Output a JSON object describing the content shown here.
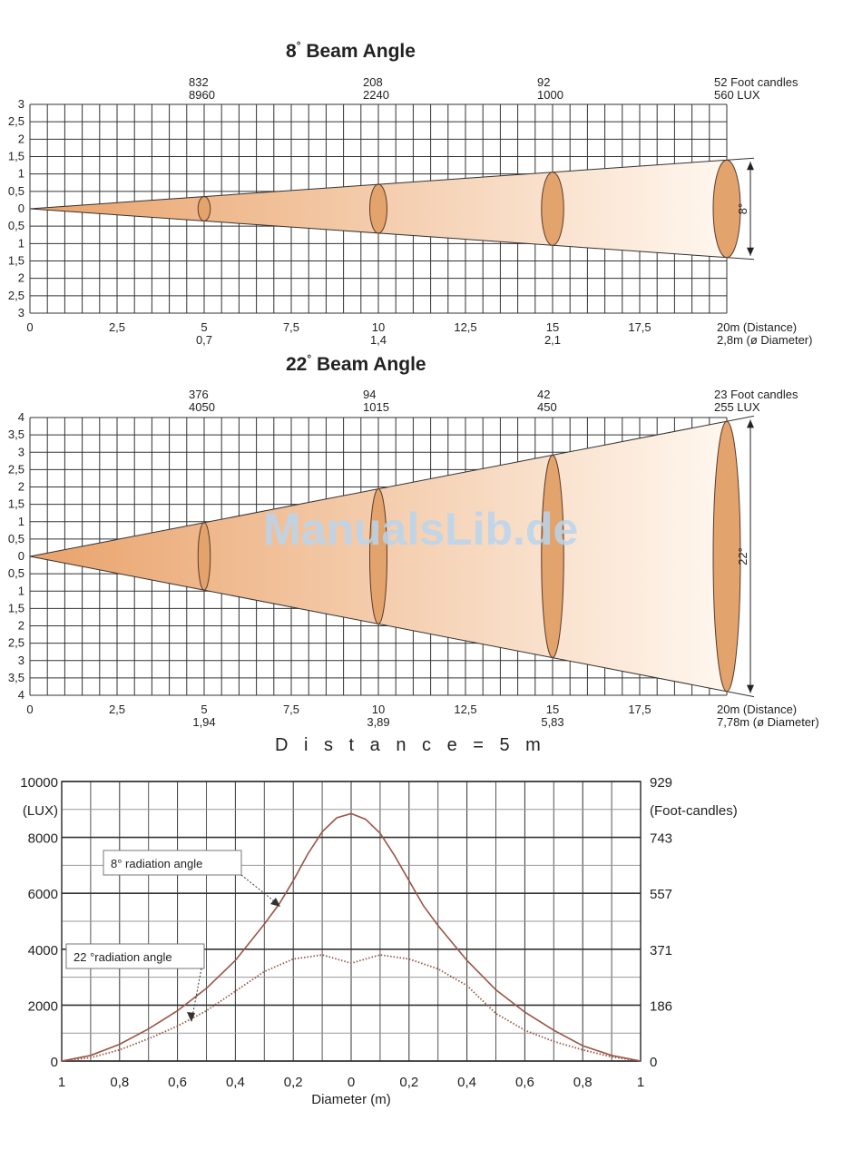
{
  "watermark": "ManualsLib.de",
  "distance_title": "D i s t a n c e = 5 m",
  "colors": {
    "beam_dark": "#e9a26a",
    "beam_light": "#fff7ef",
    "ellipse_fill": "#e2a36c",
    "curve": "#9a5545",
    "grid": "#333333"
  },
  "chart_data": [
    {
      "type": "beam_diagram",
      "title": "8° Beam Angle",
      "title_main": "8",
      "title_deg": "°",
      "title_rest": " Beam Angle",
      "beam_angle_label": "8°",
      "x_ticks": [
        "0",
        "2,5",
        "5",
        "7,5",
        "10",
        "12,5",
        "15",
        "17,5"
      ],
      "x_values": [
        0,
        2.5,
        5,
        7.5,
        10,
        12.5,
        15,
        17.5
      ],
      "x_end_label": "20m (Distance)",
      "xlim": [
        0,
        20
      ],
      "diameter_ticks": [
        "0,7",
        "1,4",
        "2,1"
      ],
      "diameter_end_label": "2,8m (ø Diameter)",
      "y_ticks": [
        "3",
        "2,5",
        "2",
        "1,5",
        "1",
        "0,5",
        "0",
        "0,5",
        "1",
        "1,5",
        "2",
        "2,5",
        "3"
      ],
      "ylim": [
        -3,
        3
      ],
      "half_diameter_at_20m": 1.4,
      "points": [
        {
          "distance": 5,
          "foot_candles": "832",
          "lux": "8960",
          "diameter": 0.7
        },
        {
          "distance": 10,
          "foot_candles": "208",
          "lux": "2240",
          "diameter": 1.4
        },
        {
          "distance": 15,
          "foot_candles": "92",
          "lux": "1000",
          "diameter": 2.1
        },
        {
          "distance": 20,
          "foot_candles": "52 Foot candles",
          "lux": "560 LUX",
          "diameter": 2.8
        }
      ]
    },
    {
      "type": "beam_diagram",
      "title": "22° Beam Angle",
      "title_main": "22",
      "title_deg": "°",
      "title_rest": " Beam Angle",
      "beam_angle_label": "22°",
      "x_ticks": [
        "0",
        "2,5",
        "5",
        "7,5",
        "10",
        "12,5",
        "15",
        "17,5"
      ],
      "x_values": [
        0,
        2.5,
        5,
        7.5,
        10,
        12.5,
        15,
        17.5
      ],
      "x_end_label": "20m (Distance)",
      "xlim": [
        0,
        20
      ],
      "diameter_ticks": [
        "1,94",
        "3,89",
        "5,83"
      ],
      "diameter_end_label": "7,78m (ø Diameter)",
      "y_ticks": [
        "4",
        "3,5",
        "3",
        "2,5",
        "2",
        "1,5",
        "1",
        "0,5",
        "0",
        "0,5",
        "1",
        "1,5",
        "2",
        "2,5",
        "3",
        "3,5",
        "4"
      ],
      "ylim": [
        -4,
        4
      ],
      "half_diameter_at_20m": 3.89,
      "points": [
        {
          "distance": 5,
          "foot_candles": "376",
          "lux": "4050",
          "diameter": 1.94
        },
        {
          "distance": 10,
          "foot_candles": "94",
          "lux": "1015",
          "diameter": 3.89
        },
        {
          "distance": 15,
          "foot_candles": "42",
          "lux": "450",
          "diameter": 5.83
        },
        {
          "distance": 20,
          "foot_candles": "23 Foot candles",
          "lux": "255 LUX",
          "diameter": 7.78
        }
      ]
    },
    {
      "type": "line",
      "xlabel": "Diameter (m)",
      "x_ticks": [
        "1",
        "0,8",
        "0,6",
        "0,4",
        "0,2",
        "0",
        "0,2",
        "0,4",
        "0,6",
        "0,8",
        "1"
      ],
      "x_values": [
        -1,
        -0.8,
        -0.6,
        -0.4,
        -0.2,
        0,
        0.2,
        0.4,
        0.6,
        0.8,
        1
      ],
      "xlim": [
        -1,
        1
      ],
      "ylabel_left": "(LUX)",
      "ylabel_right": "(Foot-candles)",
      "y_ticks_left": [
        "10000",
        "8000",
        "6000",
        "4000",
        "2000",
        "0"
      ],
      "y_ticks_right": [
        "929",
        "743",
        "557",
        "371",
        "186",
        "0"
      ],
      "y_tick_values": [
        10000,
        8000,
        6000,
        4000,
        2000,
        0
      ],
      "ylim": [
        0,
        10000
      ],
      "series": [
        {
          "name": "8°  radiation angle",
          "style": "solid",
          "x": [
            -1,
            -0.9,
            -0.8,
            -0.7,
            -0.6,
            -0.5,
            -0.4,
            -0.3,
            -0.25,
            -0.2,
            -0.15,
            -0.1,
            -0.05,
            0,
            0.05,
            0.1,
            0.15,
            0.2,
            0.25,
            0.3,
            0.4,
            0.5,
            0.6,
            0.7,
            0.8,
            0.9,
            1
          ],
          "values": [
            0,
            200,
            600,
            1150,
            1800,
            2600,
            3600,
            4900,
            5600,
            6450,
            7400,
            8200,
            8700,
            8850,
            8650,
            8150,
            7350,
            6450,
            5550,
            4850,
            3600,
            2550,
            1750,
            1100,
            550,
            200,
            0
          ]
        },
        {
          "name": "22 °radiation angle",
          "style": "dotted",
          "x": [
            -1,
            -0.9,
            -0.8,
            -0.7,
            -0.6,
            -0.5,
            -0.4,
            -0.3,
            -0.2,
            -0.1,
            -0.05,
            0,
            0.05,
            0.1,
            0.2,
            0.3,
            0.4,
            0.5,
            0.6,
            0.7,
            0.8,
            0.9,
            1
          ],
          "values": [
            0,
            120,
            400,
            800,
            1250,
            1800,
            2500,
            3200,
            3650,
            3800,
            3650,
            3500,
            3650,
            3800,
            3650,
            3300,
            2700,
            1700,
            1100,
            700,
            400,
            150,
            0
          ]
        }
      ]
    }
  ]
}
